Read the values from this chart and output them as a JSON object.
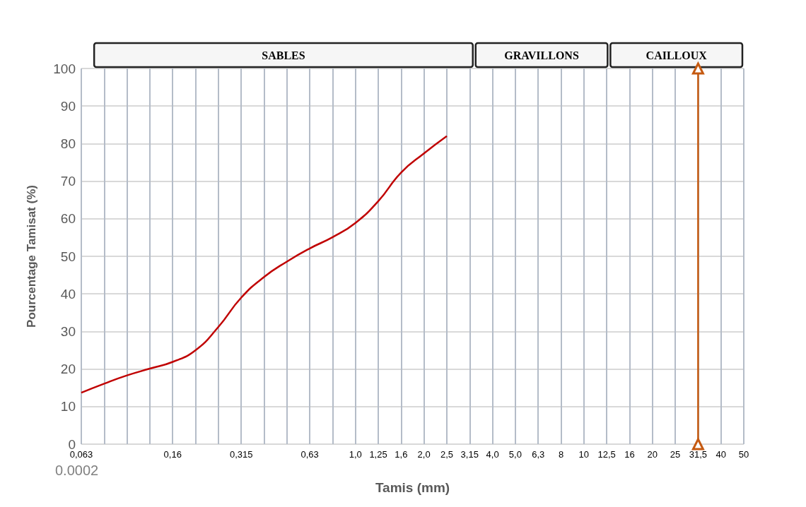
{
  "chart_data": {
    "type": "line",
    "xlabel": "Tamis (mm)",
    "ylabel": "Pourcentage Tamisat (%)",
    "categories": [
      "0,063",
      null,
      null,
      null,
      "0,16",
      null,
      null,
      "0,315",
      null,
      null,
      "0,63",
      null,
      "1,0",
      "1,25",
      "1,6",
      "2,0",
      "2,5",
      "3,15",
      "4,0",
      "5,0",
      "6,3",
      "8",
      "10",
      "12,5",
      "16",
      "20",
      "25",
      "31,5",
      "40",
      "50"
    ],
    "series": [
      {
        "color": "#c00000",
        "marker": "none",
        "values": [
          13.7,
          16.1,
          18.3,
          20.1,
          21.9,
          25.0,
          31.2,
          39.0,
          44.5,
          48.6,
          52.1,
          55.1,
          58.9,
          64.7,
          72.3,
          77.4,
          82.0,
          null,
          null,
          null,
          null,
          null,
          null,
          null,
          null,
          null,
          null,
          null,
          null,
          null
        ]
      },
      {
        "color": "#c55a11",
        "marker": "triangle",
        "x": [
          "31,5",
          "31,5"
        ],
        "values": [
          0,
          100
        ]
      }
    ],
    "ylim": [
      0,
      100
    ],
    "yticks": [
      0,
      10,
      20,
      30,
      40,
      50,
      60,
      70,
      80,
      90,
      100
    ],
    "grid": true,
    "annotations": [
      "SABLES",
      "GRAVILLONS",
      "CAILLOUX",
      "0.0002"
    ]
  }
}
